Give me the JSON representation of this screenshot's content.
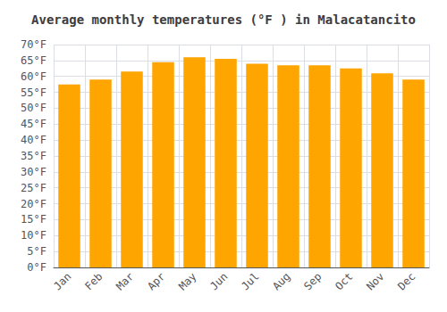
{
  "chart_data": {
    "type": "bar",
    "title": "Average monthly temperatures (°F ) in Malacatancito",
    "categories": [
      "Jan",
      "Feb",
      "Mar",
      "Apr",
      "May",
      "Jun",
      "Jul",
      "Aug",
      "Sep",
      "Oct",
      "Nov",
      "Dec"
    ],
    "values": [
      57.5,
      59.0,
      61.5,
      64.5,
      66.0,
      65.5,
      64.0,
      63.5,
      63.5,
      62.5,
      61.0,
      59.0
    ],
    "color": "#FFA500",
    "ylim": [
      0,
      70
    ],
    "yticks": [
      {
        "value": 0,
        "label": "0°F"
      },
      {
        "value": 5,
        "label": "5°F"
      },
      {
        "value": 10,
        "label": "10°F"
      },
      {
        "value": 15,
        "label": "15°F"
      },
      {
        "value": 20,
        "label": "20°F"
      },
      {
        "value": 25,
        "label": "25°F"
      },
      {
        "value": 30,
        "label": "30°F"
      },
      {
        "value": 35,
        "label": "35°F"
      },
      {
        "value": 40,
        "label": "40°F"
      },
      {
        "value": 45,
        "label": "45°F"
      },
      {
        "value": 50,
        "label": "50°F"
      },
      {
        "value": 55,
        "label": "55°F"
      },
      {
        "value": 60,
        "label": "60°F"
      },
      {
        "value": 65,
        "label": "65°F"
      },
      {
        "value": 70,
        "label": "70°F"
      }
    ],
    "grid": true
  }
}
